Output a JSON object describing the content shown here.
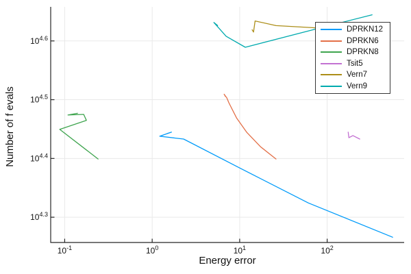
{
  "chart_data": {
    "type": "line",
    "title": "",
    "xlabel": "Energy error",
    "ylabel": "Number of f evals",
    "x_scale": "log10",
    "y_scale": "log10",
    "xlim_log10": [
      -1.16,
      2.88
    ],
    "ylim_log10": [
      4.257,
      4.658
    ],
    "grid": true,
    "legend_position": "top-right",
    "style": {
      "background": "#FFFFFF",
      "grid": "#E9E9E9",
      "axis": "#262626",
      "text": "#111111",
      "legend_border": "#363636"
    },
    "x_ticks": [
      {
        "value": 0.1,
        "label_base": "10",
        "label_exp": "-1"
      },
      {
        "value": 1,
        "label_base": "10",
        "label_exp": "0"
      },
      {
        "value": 10,
        "label_base": "10",
        "label_exp": "1"
      },
      {
        "value": 100,
        "label_base": "10",
        "label_exp": "2"
      }
    ],
    "y_ticks": [
      {
        "log10_value": 4.3,
        "label_base": "10",
        "label_exp": "4.3"
      },
      {
        "log10_value": 4.4,
        "label_base": "10",
        "label_exp": "4.4"
      },
      {
        "log10_value": 4.5,
        "label_base": "10",
        "label_exp": "4.5"
      },
      {
        "log10_value": 4.6,
        "label_base": "10",
        "label_exp": "4.6"
      }
    ],
    "series": [
      {
        "name": "DPRKN12",
        "color": "#009BFA",
        "points": [
          [
            1.49,
            27700
          ],
          [
            1.66,
            27850
          ],
          [
            1.22,
            27400
          ],
          [
            2.29,
            27100
          ],
          [
            10,
            24200
          ],
          [
            61,
            21100
          ],
          [
            560,
            18450
          ]
        ]
      },
      {
        "name": "DPRKN6",
        "color": "#E36F47",
        "points": [
          [
            6.88,
            32030
          ],
          [
            6.64,
            32300
          ],
          [
            7.13,
            31850
          ],
          [
            7.53,
            31250
          ],
          [
            9.2,
            29450
          ],
          [
            12,
            27850
          ],
          [
            17.3,
            26300
          ],
          [
            26,
            25070
          ]
        ]
      },
      {
        "name": "DPRKN8",
        "color": "#3EA44E",
        "points": [
          [
            0.14,
            29980
          ],
          [
            0.109,
            29780
          ],
          [
            0.165,
            29850
          ],
          [
            0.177,
            29160
          ],
          [
            0.0877,
            28150
          ],
          [
            0.241,
            25070
          ]
        ]
      },
      {
        "name": "Tsit5",
        "color": "#C371D2",
        "points": [
          [
            174,
            27850
          ],
          [
            177,
            27250
          ],
          [
            197,
            27480
          ],
          [
            236,
            27100
          ]
        ]
      },
      {
        "name": "Vern7",
        "color": "#AC8E18",
        "points": [
          [
            13.9,
            41600
          ],
          [
            14.4,
            41220
          ],
          [
            15.0,
            43050
          ],
          [
            26,
            42270
          ],
          [
            80,
            41880
          ]
        ]
      },
      {
        "name": "Vern9",
        "color": "#00AAAE",
        "points": [
          [
            5.6,
            42300
          ],
          [
            5.07,
            42800
          ],
          [
            7.0,
            40550
          ],
          [
            11.6,
            38840
          ],
          [
            73,
            41690
          ],
          [
            326,
            44100
          ]
        ]
      }
    ]
  }
}
